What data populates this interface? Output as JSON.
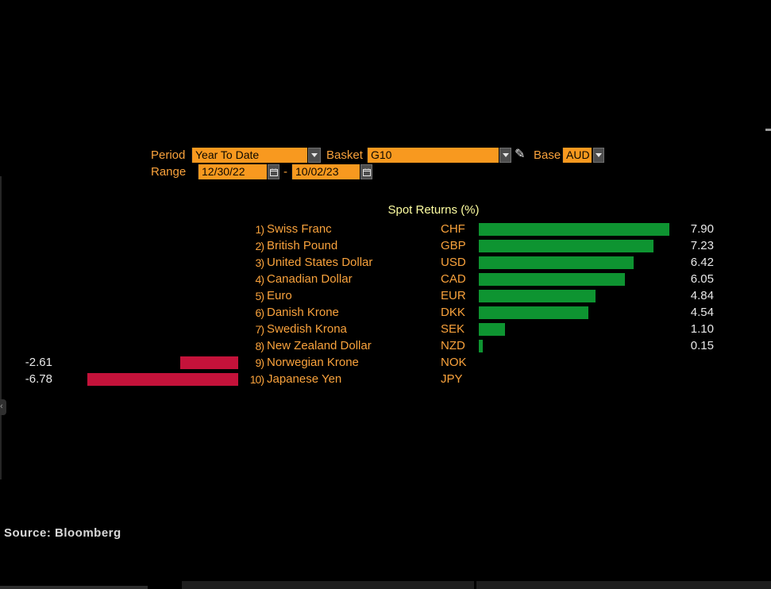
{
  "controls": {
    "period": {
      "label": "Period",
      "value": "Year To Date"
    },
    "basket": {
      "label": "Basket",
      "value": "G10"
    },
    "base": {
      "label": "Base",
      "value": "AUD"
    },
    "range": {
      "label": "Range",
      "start": "12/30/22",
      "separator": "-",
      "end": "10/02/23"
    }
  },
  "chart_data": {
    "type": "bar",
    "orientation": "horizontal",
    "title": "Spot Returns (%)",
    "xlabel": "",
    "ylabel": "",
    "unit": "%",
    "base_currency": "AUD",
    "xlim": [
      -8,
      9
    ],
    "grid": false,
    "legend": "none",
    "positive_color": "#0e9431",
    "negative_color": "#c4123a",
    "categories": [
      "Swiss Franc",
      "British Pound",
      "United States Dollar",
      "Canadian Dollar",
      "Euro",
      "Danish Krone",
      "Swedish Krona",
      "New Zealand Dollar",
      "Norwegian Krone",
      "Japanese Yen"
    ],
    "values": [
      7.9,
      7.23,
      6.42,
      6.05,
      4.84,
      4.54,
      1.1,
      0.15,
      -2.61,
      -6.78
    ],
    "rows": [
      {
        "rank": "1)",
        "name": "Swiss Franc",
        "code": "CHF",
        "value": 7.9,
        "display": "7.90"
      },
      {
        "rank": "2)",
        "name": "British Pound",
        "code": "GBP",
        "value": 7.23,
        "display": "7.23"
      },
      {
        "rank": "3)",
        "name": "United States Dollar",
        "code": "USD",
        "value": 6.42,
        "display": "6.42"
      },
      {
        "rank": "4)",
        "name": "Canadian Dollar",
        "code": "CAD",
        "value": 6.05,
        "display": "6.05"
      },
      {
        "rank": "5)",
        "name": "Euro",
        "code": "EUR",
        "value": 4.84,
        "display": "4.84"
      },
      {
        "rank": "6)",
        "name": "Danish Krone",
        "code": "DKK",
        "value": 4.54,
        "display": "4.54"
      },
      {
        "rank": "7)",
        "name": "Swedish Krona",
        "code": "SEK",
        "value": 1.1,
        "display": "1.10"
      },
      {
        "rank": "8)",
        "name": "New Zealand Dollar",
        "code": "NZD",
        "value": 0.15,
        "display": "0.15"
      },
      {
        "rank": "9)",
        "name": "Norwegian Krone",
        "code": "NOK",
        "value": -2.61,
        "display": "-2.61"
      },
      {
        "rank": "10)",
        "name": "Japanese Yen",
        "code": "JPY",
        "value": -6.78,
        "display": "-6.78"
      }
    ]
  },
  "footer": {
    "source": "Source: Bloomberg"
  },
  "icons": {
    "panel_handle_glyph": "‹",
    "pencil_glyph": "✎"
  },
  "colors": {
    "background": "#000000",
    "accent_orange_text": "#f9a23c",
    "field_orange": "#f8991f",
    "title_yellow": "#ffffa2",
    "value_text": "#e8e8e8",
    "button_gray": "#4e4e4e"
  }
}
